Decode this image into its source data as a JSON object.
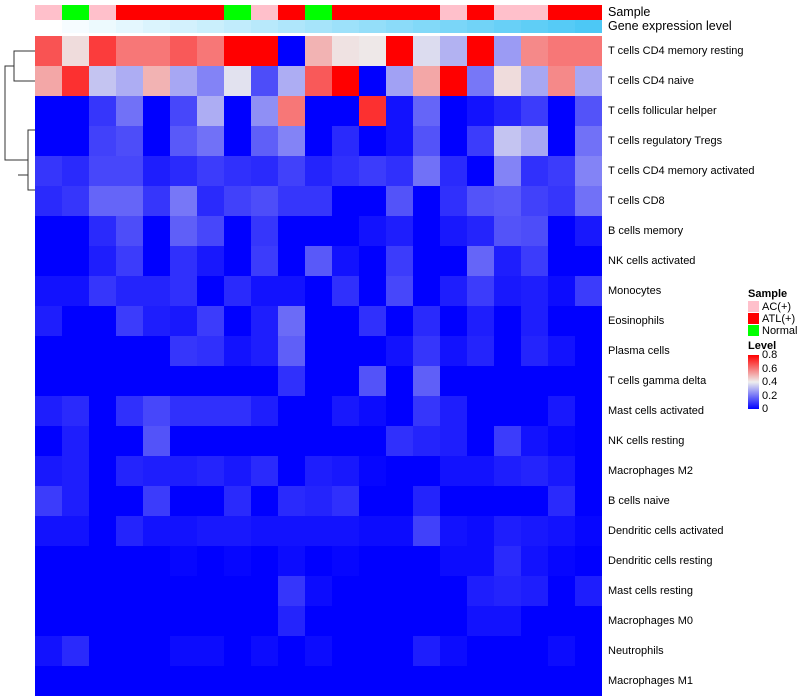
{
  "chart_data": {
    "type": "heatmap",
    "title": "",
    "annotation_tracks": [
      "Sample",
      "Gene expression level"
    ],
    "columns_sample": [
      "AC(+)",
      "Normal",
      "AC(+)",
      "ATL(+)",
      "ATL(+)",
      "ATL(+)",
      "ATL(+)",
      "Normal",
      "AC(+)",
      "ATL(+)",
      "Normal",
      "ATL(+)",
      "ATL(+)",
      "ATL(+)",
      "ATL(+)",
      "AC(+)",
      "ATL(+)",
      "AC(+)",
      "AC(+)",
      "ATL(+)",
      "ATL(+)"
    ],
    "gene_expression_rank": [
      0,
      1,
      2,
      3,
      4,
      5,
      6,
      7,
      8,
      9,
      10,
      11,
      12,
      13,
      14,
      15,
      16,
      17,
      18,
      19,
      20
    ],
    "rows": [
      "T cells CD4 memory resting",
      "T cells CD4 naive",
      "T cells follicular helper",
      "T cells regulatory  Tregs",
      "T cells CD4 memory activated",
      "T cells CD8",
      "B cells memory",
      "NK cells activated",
      "Monocytes",
      "Eosinophils",
      "Plasma cells",
      "T cells gamma delta",
      "Mast cells activated",
      "NK cells resting",
      "Macrophages M2",
      "B cells naive",
      "Dendritic cells activated",
      "Dendritic cells resting",
      "Mast cells resting",
      "Macrophages M0",
      "Neutrophils",
      "Macrophages M1"
    ],
    "values": [
      [
        0.66,
        0.43,
        0.7,
        0.6,
        0.6,
        0.65,
        0.6,
        0.8,
        0.8,
        0.0,
        0.5,
        0.42,
        0.41,
        0.8,
        0.37,
        0.3,
        0.8,
        0.26,
        0.57,
        0.6,
        0.6
      ],
      [
        0.52,
        0.72,
        0.33,
        0.29,
        0.5,
        0.28,
        0.22,
        0.38,
        0.13,
        0.29,
        0.65,
        0.8,
        0.0,
        0.27,
        0.52,
        0.8,
        0.2,
        0.43,
        0.28,
        0.57,
        0.28
      ],
      [
        0.0,
        0.0,
        0.09,
        0.19,
        0.0,
        0.12,
        0.29,
        0.0,
        0.24,
        0.6,
        0.0,
        0.0,
        0.72,
        0.03,
        0.17,
        0.0,
        0.03,
        0.06,
        0.1,
        0.0,
        0.14
      ],
      [
        0.0,
        0.0,
        0.11,
        0.13,
        0.0,
        0.15,
        0.19,
        0.0,
        0.16,
        0.22,
        0.0,
        0.07,
        0.0,
        0.03,
        0.14,
        0.0,
        0.1,
        0.33,
        0.28,
        0.0,
        0.19
      ],
      [
        0.09,
        0.07,
        0.12,
        0.12,
        0.05,
        0.07,
        0.1,
        0.08,
        0.07,
        0.11,
        0.06,
        0.08,
        0.1,
        0.08,
        0.19,
        0.07,
        0.0,
        0.22,
        0.08,
        0.1,
        0.22
      ],
      [
        0.07,
        0.09,
        0.17,
        0.17,
        0.09,
        0.2,
        0.07,
        0.11,
        0.13,
        0.09,
        0.09,
        0.0,
        0.0,
        0.14,
        0.0,
        0.08,
        0.14,
        0.15,
        0.11,
        0.09,
        0.19
      ],
      [
        0.0,
        0.0,
        0.07,
        0.13,
        0.0,
        0.16,
        0.12,
        0.0,
        0.09,
        0.0,
        0.0,
        0.0,
        0.03,
        0.05,
        0.0,
        0.04,
        0.06,
        0.14,
        0.13,
        0.0,
        0.04
      ],
      [
        0.0,
        0.0,
        0.05,
        0.1,
        0.0,
        0.08,
        0.04,
        0.0,
        0.1,
        0.0,
        0.15,
        0.03,
        0.0,
        0.1,
        0.0,
        0.0,
        0.17,
        0.05,
        0.1,
        0.0,
        0.0
      ],
      [
        0.03,
        0.03,
        0.09,
        0.06,
        0.06,
        0.08,
        0.0,
        0.07,
        0.03,
        0.03,
        0.0,
        0.08,
        0.0,
        0.12,
        0.0,
        0.05,
        0.1,
        0.04,
        0.05,
        0.02,
        0.1
      ],
      [
        0.05,
        0.0,
        0.0,
        0.1,
        0.05,
        0.04,
        0.1,
        0.0,
        0.05,
        0.18,
        0.0,
        0.0,
        0.08,
        0.0,
        0.07,
        0.0,
        0.05,
        0.0,
        0.05,
        0.0,
        0.0
      ],
      [
        0.0,
        0.0,
        0.0,
        0.0,
        0.0,
        0.09,
        0.08,
        0.03,
        0.05,
        0.16,
        0.0,
        0.0,
        0.0,
        0.03,
        0.09,
        0.03,
        0.06,
        0.0,
        0.06,
        0.03,
        0.0
      ],
      [
        0.0,
        0.0,
        0.0,
        0.0,
        0.0,
        0.0,
        0.0,
        0.0,
        0.0,
        0.08,
        0.0,
        0.0,
        0.14,
        0.0,
        0.16,
        0.0,
        0.0,
        0.0,
        0.0,
        0.0,
        0.0
      ],
      [
        0.05,
        0.07,
        0.0,
        0.08,
        0.12,
        0.08,
        0.08,
        0.08,
        0.05,
        0.0,
        0.0,
        0.04,
        0.02,
        0.0,
        0.09,
        0.05,
        0.0,
        0.0,
        0.0,
        0.04,
        0.0
      ],
      [
        0.0,
        0.05,
        0.0,
        0.0,
        0.14,
        0.0,
        0.0,
        0.0,
        0.0,
        0.0,
        0.0,
        0.0,
        0.0,
        0.08,
        0.06,
        0.05,
        0.0,
        0.1,
        0.03,
        0.01,
        0.0
      ],
      [
        0.04,
        0.05,
        0.0,
        0.06,
        0.05,
        0.05,
        0.06,
        0.04,
        0.07,
        0.0,
        0.05,
        0.04,
        0.01,
        0.0,
        0.0,
        0.03,
        0.03,
        0.05,
        0.06,
        0.04,
        0.0
      ],
      [
        0.1,
        0.05,
        0.0,
        0.0,
        0.1,
        0.0,
        0.0,
        0.07,
        0.0,
        0.07,
        0.06,
        0.08,
        0.0,
        0.0,
        0.06,
        0.0,
        0.0,
        0.0,
        0.0,
        0.07,
        0.0
      ],
      [
        0.03,
        0.03,
        0.0,
        0.06,
        0.03,
        0.03,
        0.04,
        0.04,
        0.03,
        0.03,
        0.03,
        0.03,
        0.02,
        0.02,
        0.11,
        0.03,
        0.02,
        0.05,
        0.04,
        0.03,
        0.01
      ],
      [
        0.0,
        0.0,
        0.0,
        0.0,
        0.0,
        0.01,
        0.0,
        0.01,
        0.0,
        0.02,
        0.0,
        0.01,
        0.0,
        0.0,
        0.0,
        0.02,
        0.02,
        0.07,
        0.03,
        0.01,
        0.0
      ],
      [
        0.0,
        0.0,
        0.0,
        0.0,
        0.0,
        0.0,
        0.0,
        0.0,
        0.0,
        0.09,
        0.02,
        0.0,
        0.0,
        0.0,
        0.0,
        0.0,
        0.05,
        0.06,
        0.05,
        0.0,
        0.05
      ],
      [
        0.0,
        0.0,
        0.0,
        0.0,
        0.0,
        0.0,
        0.0,
        0.0,
        0.0,
        0.06,
        0.0,
        0.0,
        0.0,
        0.0,
        0.0,
        0.0,
        0.03,
        0.03,
        0.0,
        0.0,
        0.0
      ],
      [
        0.03,
        0.07,
        0.0,
        0.0,
        0.0,
        0.02,
        0.02,
        0.0,
        0.02,
        0.0,
        0.02,
        0.0,
        0.0,
        0.0,
        0.05,
        0.02,
        0.0,
        0.0,
        0.0,
        0.02,
        0.0
      ],
      [
        0.0,
        0.0,
        0.0,
        0.0,
        0.0,
        0.0,
        0.0,
        0.0,
        0.0,
        0.0,
        0.0,
        0.0,
        0.0,
        0.0,
        0.0,
        0.0,
        0.0,
        0.0,
        0.0,
        0.0,
        0.0
      ]
    ],
    "color_range": [
      0,
      0.8
    ],
    "colors": {
      "low": "#0000FF",
      "mid": "#EEEEEE",
      "high": "#FF0000",
      "gene_low": "#FFFFFF",
      "gene_high": "#4DC8F5"
    },
    "legend": {
      "sample_title": "Sample",
      "sample_items": [
        {
          "label": "AC(+)",
          "color": "#FFC0CB"
        },
        {
          "label": "ATL(+)",
          "color": "#FF0000"
        },
        {
          "label": "Normal",
          "color": "#00FF00"
        }
      ],
      "level_title": "Level",
      "level_ticks": [
        "0.8",
        "0.6",
        "0.4",
        "0.2",
        "0"
      ],
      "placement": "right"
    }
  }
}
